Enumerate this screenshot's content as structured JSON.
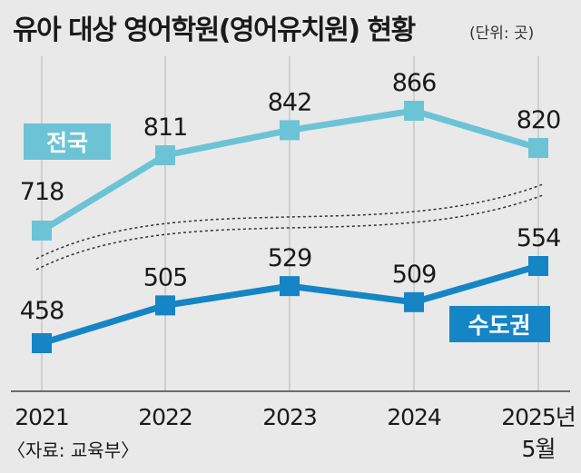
{
  "title": "유아 대상 영어학원(영어유치원) 현황",
  "unit": "(단위: 곳)",
  "source": "〈자료: 교육부〉",
  "colors": {
    "national": "#6cc3d6",
    "capital": "#1585c5",
    "background": "#e9e9e9"
  },
  "chart_data": {
    "type": "line",
    "categories": [
      "2021",
      "2022",
      "2023",
      "2024",
      "2025년 5월"
    ],
    "tick_labels": [
      "2021",
      "2022",
      "2023",
      "2024",
      "2025년",
      "5월"
    ],
    "series": [
      {
        "name": "전국",
        "values": [
          718,
          811,
          842,
          866,
          820
        ]
      },
      {
        "name": "수도권",
        "values": [
          458,
          505,
          529,
          509,
          554
        ]
      }
    ],
    "axis_break": true,
    "grid": "vertical"
  }
}
